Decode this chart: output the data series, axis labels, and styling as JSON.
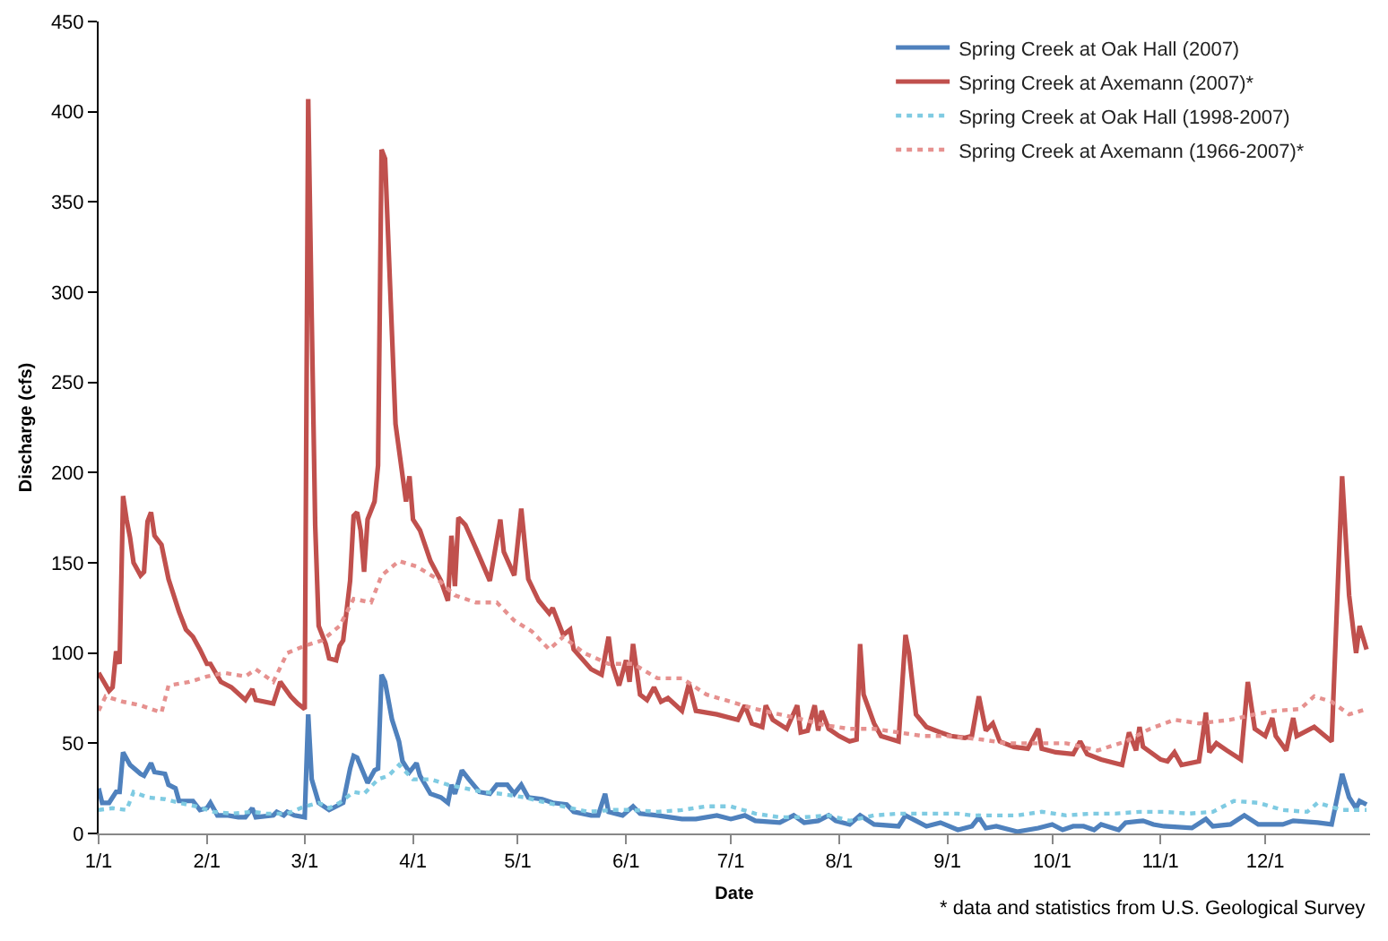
{
  "chart_data": {
    "type": "line",
    "xlabel": "Date",
    "ylabel": "Discharge (cfs)",
    "xlim": [
      "--01-01",
      "--12-31"
    ],
    "ylim": [
      0,
      450
    ],
    "yticks": [
      0,
      50,
      100,
      150,
      200,
      250,
      300,
      350,
      400,
      450
    ],
    "xticks": [
      {
        "value": "--01-01",
        "label": "1/1"
      },
      {
        "value": "--02-01",
        "label": "2/1"
      },
      {
        "value": "--03-01",
        "label": "3/1"
      },
      {
        "value": "--04-01",
        "label": "4/1"
      },
      {
        "value": "--05-01",
        "label": "5/1"
      },
      {
        "value": "--06-01",
        "label": "6/1"
      },
      {
        "value": "--07-01",
        "label": "7/1"
      },
      {
        "value": "--08-01",
        "label": "8/1"
      },
      {
        "value": "--09-01",
        "label": "9/1"
      },
      {
        "value": "--10-01",
        "label": "10/1"
      },
      {
        "value": "--11-01",
        "label": "11/1"
      },
      {
        "value": "--12-01",
        "label": "12/1"
      }
    ],
    "grid": false,
    "legend": "top right",
    "marker": "none",
    "annotations": [
      "* data and statistics from U.S. Geological Survey"
    ],
    "series": [
      {
        "name": "Spring Creek at Oak Hall (2007)",
        "color": "#4f81bd",
        "line_style": "solid",
        "x": [
          "--01-01",
          "--01-02",
          "--01-04",
          "--01-06",
          "--01-07",
          "--01-08",
          "--01-10",
          "--01-13",
          "--01-14",
          "--01-16",
          "--01-17",
          "--01-20",
          "--01-21",
          "--01-23",
          "--01-24",
          "--01-28",
          "--01-30",
          "--02-01",
          "--02-02",
          "--02-04",
          "--02-07",
          "--02-10",
          "--02-12",
          "--02-14",
          "--02-15",
          "--02-20",
          "--02-21",
          "--02-23",
          "--02-24",
          "--02-26",
          "--03-01",
          "--03-02",
          "--03-03",
          "--03-05",
          "--03-08",
          "--03-12",
          "--03-14",
          "--03-15",
          "--03-16",
          "--03-19",
          "--03-21",
          "--03-22",
          "--03-23",
          "--03-24",
          "--03-26",
          "--03-28",
          "--03-29",
          "--03-31",
          "--04-02",
          "--04-03",
          "--04-06",
          "--04-09",
          "--04-11",
          "--04-12",
          "--04-13",
          "--04-15",
          "--04-17",
          "--04-20",
          "--04-23",
          "--04-25",
          "--04-28",
          "--04-30",
          "--05-02",
          "--05-04",
          "--05-08",
          "--05-11",
          "--05-15",
          "--05-17",
          "--05-22",
          "--05-24",
          "--05-26",
          "--05-27",
          "--05-31",
          "--06-03",
          "--06-05",
          "--06-10",
          "--06-17",
          "--06-21",
          "--06-27",
          "--07-01",
          "--07-05",
          "--07-08",
          "--07-15",
          "--07-19",
          "--07-22",
          "--07-26",
          "--07-29",
          "--07-31",
          "--08-04",
          "--08-07",
          "--08-11",
          "--08-18",
          "--08-20",
          "--08-23",
          "--08-26",
          "--08-30",
          "--09-04",
          "--09-08",
          "--09-10",
          "--09-12",
          "--09-15",
          "--09-21",
          "--09-27",
          "--10-01",
          "--10-04",
          "--10-07",
          "--10-10",
          "--10-13",
          "--10-15",
          "--10-20",
          "--10-22",
          "--10-27",
          "--10-30",
          "--11-02",
          "--11-10",
          "--11-14",
          "--11-16",
          "--11-21",
          "--11-25",
          "--11-29",
          "--12-06",
          "--12-09",
          "--12-16",
          "--12-20",
          "--12-23",
          "--12-25",
          "--12-27",
          "--12-28",
          "--12-30"
        ],
        "values": [
          25,
          17,
          17,
          23,
          23,
          45,
          38,
          33,
          32,
          39,
          34,
          33,
          27,
          25,
          18,
          18,
          13,
          14,
          17,
          10,
          10,
          9,
          9,
          14,
          9,
          10,
          12,
          10,
          12,
          10,
          9,
          66,
          30,
          17,
          13,
          17,
          36,
          43,
          42,
          28,
          35,
          36,
          88,
          84,
          63,
          51,
          40,
          34,
          39,
          32,
          22,
          20,
          17,
          27,
          22,
          35,
          30,
          23,
          22,
          27,
          27,
          22,
          27,
          20,
          19,
          17,
          16,
          12,
          10,
          10,
          22,
          12,
          10,
          15,
          11,
          10,
          8,
          8,
          10,
          8,
          10,
          7,
          6,
          10,
          6,
          7,
          10,
          7,
          5,
          10,
          5,
          4,
          10,
          7,
          4,
          6,
          2,
          4,
          9,
          3,
          4,
          1,
          3,
          5,
          2,
          4,
          4,
          2,
          5,
          2,
          6,
          7,
          5,
          4,
          3,
          8,
          4,
          5,
          10,
          5,
          5,
          7,
          6,
          5,
          33,
          20,
          14,
          18,
          16
        ]
      },
      {
        "name": "Spring Creek at Axemann (2007)*",
        "color": "#c0504d",
        "line_style": "solid",
        "x": [
          "--01-01",
          "--01-04",
          "--01-05",
          "--01-06",
          "--01-07",
          "--01-08",
          "--01-09",
          "--01-10",
          "--01-11",
          "--01-13",
          "--01-14",
          "--01-15",
          "--01-16",
          "--01-17",
          "--01-19",
          "--01-21",
          "--01-24",
          "--01-26",
          "--01-28",
          "--01-30",
          "--02-01",
          "--02-02",
          "--02-05",
          "--02-08",
          "--02-12",
          "--02-14",
          "--02-15",
          "--02-20",
          "--02-22",
          "--02-25",
          "--02-27",
          "--03-01",
          "--03-02",
          "--03-03",
          "--03-04",
          "--03-05",
          "--03-07",
          "--03-08",
          "--03-10",
          "--03-11",
          "--03-12",
          "--03-14",
          "--03-15",
          "--03-16",
          "--03-17",
          "--03-18",
          "--03-19",
          "--03-21",
          "--03-22",
          "--03-23",
          "--03-24",
          "--03-26",
          "--03-27",
          "--03-30",
          "--03-31",
          "--04-01",
          "--04-03",
          "--04-06",
          "--04-09",
          "--04-11",
          "--04-12",
          "--04-13",
          "--04-14",
          "--04-16",
          "--04-19",
          "--04-23",
          "--04-26",
          "--04-27",
          "--04-30",
          "--05-02",
          "--05-04",
          "--05-07",
          "--05-10",
          "--05-11",
          "--05-14",
          "--05-16",
          "--05-17",
          "--05-22",
          "--05-25",
          "--05-27",
          "--05-28",
          "--05-30",
          "--06-01",
          "--06-02",
          "--06-03",
          "--06-05",
          "--06-07",
          "--06-09",
          "--06-11",
          "--06-13",
          "--06-17",
          "--06-19",
          "--06-21",
          "--06-27",
          "--07-03",
          "--07-05",
          "--07-07",
          "--07-10",
          "--07-11",
          "--07-13",
          "--07-17",
          "--07-20",
          "--07-21",
          "--07-23",
          "--07-25",
          "--07-26",
          "--07-27",
          "--07-29",
          "--08-01",
          "--08-04",
          "--08-06",
          "--08-07",
          "--08-08",
          "--08-11",
          "--08-13",
          "--08-18",
          "--08-20",
          "--08-21",
          "--08-23",
          "--08-26",
          "--08-30",
          "--09-02",
          "--09-06",
          "--09-08",
          "--09-10",
          "--09-12",
          "--09-14",
          "--09-16",
          "--09-20",
          "--09-24",
          "--09-27",
          "--09-28",
          "--10-02",
          "--10-07",
          "--10-09",
          "--10-11",
          "--10-15",
          "--10-21",
          "--10-23",
          "--10-25",
          "--10-26",
          "--10-27",
          "--11-01",
          "--11-03",
          "--11-05",
          "--11-07",
          "--11-12",
          "--11-13",
          "--11-14",
          "--11-15",
          "--11-17",
          "--11-20",
          "--11-24",
          "--11-26",
          "--11-28",
          "--12-01",
          "--12-03",
          "--12-04",
          "--12-07",
          "--12-09",
          "--12-10",
          "--12-15",
          "--12-20",
          "--12-23",
          "--12-25",
          "--12-27",
          "--12-28",
          "--12-30"
        ],
        "values": [
          89,
          79,
          81,
          101,
          94,
          187,
          174,
          164,
          150,
          143,
          145,
          173,
          178,
          165,
          160,
          141,
          123,
          113,
          109,
          102,
          94,
          94,
          84,
          81,
          74,
          80,
          74,
          72,
          84,
          76,
          72,
          69,
          407,
          286,
          171,
          115,
          105,
          97,
          96,
          104,
          107,
          140,
          176,
          178,
          168,
          145,
          174,
          184,
          204,
          379,
          374,
          276,
          227,
          184,
          198,
          174,
          168,
          151,
          140,
          129,
          165,
          137,
          175,
          171,
          158,
          140,
          174,
          156,
          143,
          180,
          141,
          129,
          122,
          125,
          110,
          113,
          102,
          91,
          88,
          109,
          94,
          82,
          96,
          84,
          105,
          77,
          74,
          81,
          73,
          75,
          68,
          83,
          68,
          66,
          63,
          71,
          61,
          59,
          71,
          63,
          58,
          71,
          56,
          57,
          71,
          57,
          68,
          58,
          54,
          51,
          52,
          105,
          77,
          61,
          54,
          51,
          110,
          100,
          66,
          59,
          56,
          54,
          53,
          54,
          76,
          57,
          61,
          51,
          48,
          47,
          58,
          47,
          45,
          44,
          51,
          44,
          41,
          38,
          56,
          46,
          59,
          48,
          41,
          40,
          45,
          38,
          40,
          53,
          67,
          45,
          50,
          46,
          41,
          84,
          58,
          54,
          64,
          54,
          46,
          64,
          54,
          59,
          51,
          198,
          132,
          100,
          115,
          102
        ]
      },
      {
        "name": "Spring Creek at Oak Hall (1998-2007)",
        "color": "#7fcbe2",
        "line_style": "dotted",
        "x": [
          "--01-01",
          "--01-05",
          "--01-09",
          "--01-11",
          "--01-15",
          "--01-20",
          "--01-24",
          "--01-29",
          "--02-03",
          "--02-08",
          "--02-14",
          "--02-18",
          "--02-24",
          "--03-01",
          "--03-05",
          "--03-08",
          "--03-11",
          "--03-15",
          "--03-18",
          "--03-22",
          "--03-25",
          "--03-28",
          "--04-01",
          "--04-06",
          "--04-11",
          "--04-16",
          "--04-21",
          "--04-26",
          "--05-03",
          "--05-07",
          "--05-14",
          "--05-21",
          "--05-28",
          "--06-03",
          "--06-10",
          "--06-17",
          "--06-24",
          "--07-01",
          "--07-08",
          "--07-15",
          "--07-22",
          "--07-29",
          "--08-04",
          "--08-11",
          "--08-18",
          "--08-25",
          "--09-04",
          "--09-08",
          "--09-15",
          "--09-21",
          "--09-28",
          "--10-05",
          "--10-12",
          "--10-19",
          "--10-26",
          "--11-02",
          "--11-09",
          "--11-16",
          "--11-22",
          "--11-29",
          "--12-06",
          "--12-13",
          "--12-16",
          "--12-23",
          "--12-30"
        ],
        "values": [
          13,
          14,
          13,
          23,
          20,
          19,
          17,
          15,
          12,
          11,
          12,
          11,
          11,
          15,
          17,
          14,
          17,
          23,
          22,
          30,
          32,
          38,
          30,
          30,
          27,
          25,
          23,
          22,
          20,
          18,
          15,
          12,
          13,
          13,
          12,
          13,
          15,
          15,
          11,
          9,
          9,
          10,
          7,
          10,
          11,
          11,
          11,
          10,
          10,
          10,
          12,
          10,
          11,
          11,
          12,
          12,
          11,
          12,
          18,
          17,
          13,
          12,
          17,
          13,
          13
        ]
      },
      {
        "name": "Spring Creek at Axemann (1966-2007)*",
        "color": "#e6918f",
        "line_style": "dotted",
        "x": [
          "--01-01",
          "--01-03",
          "--01-08",
          "--01-13",
          "--01-19",
          "--01-21",
          "--01-27",
          "--02-01",
          "--02-06",
          "--02-12",
          "--02-15",
          "--02-20",
          "--02-24",
          "--03-01",
          "--03-06",
          "--03-11",
          "--03-15",
          "--03-20",
          "--03-23",
          "--03-28",
          "--04-02",
          "--04-08",
          "--04-13",
          "--04-19",
          "--04-25",
          "--04-30",
          "--05-05",
          "--05-10",
          "--05-14",
          "--05-20",
          "--05-27",
          "--06-03",
          "--06-10",
          "--06-17",
          "--06-24",
          "--07-01",
          "--07-08",
          "--07-15",
          "--07-22",
          "--07-28",
          "--08-04",
          "--08-11",
          "--08-18",
          "--08-25",
          "--09-01",
          "--09-11",
          "--09-18",
          "--09-26",
          "--10-05",
          "--10-14",
          "--10-22",
          "--10-29",
          "--11-05",
          "--11-12",
          "--11-21",
          "--11-28",
          "--12-04",
          "--12-11",
          "--12-15",
          "--12-20",
          "--12-25",
          "--12-30"
        ],
        "values": [
          68,
          76,
          73,
          71,
          67,
          82,
          84,
          87,
          89,
          87,
          91,
          84,
          100,
          104,
          107,
          115,
          130,
          128,
          143,
          151,
          148,
          141,
          132,
          128,
          128,
          118,
          112,
          102,
          109,
          100,
          94,
          94,
          86,
          86,
          77,
          73,
          69,
          66,
          63,
          60,
          58,
          58,
          56,
          54,
          54,
          52,
          50,
          50,
          50,
          46,
          51,
          58,
          63,
          61,
          63,
          66,
          68,
          69,
          76,
          73,
          66,
          69
        ]
      }
    ]
  }
}
